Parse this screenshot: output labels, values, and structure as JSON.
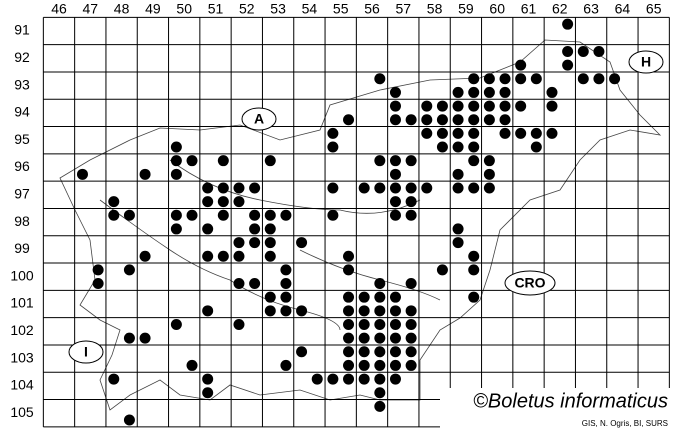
{
  "map": {
    "columns": [
      46,
      47,
      48,
      49,
      50,
      51,
      52,
      53,
      54,
      55,
      56,
      57,
      58,
      59,
      60,
      61,
      62,
      63,
      64,
      65
    ],
    "rows": [
      91,
      92,
      93,
      94,
      95,
      96,
      97,
      98,
      99,
      100,
      101,
      102,
      103,
      104,
      105
    ],
    "country_labels": [
      "A",
      "H",
      "CRO",
      "I"
    ],
    "occurrences": [
      {
        "y": 90.75,
        "x": [
          62.25
        ]
      },
      {
        "y": 91.75,
        "x": [
          62.25,
          62.75,
          63.25
        ]
      },
      {
        "y": 92.25,
        "x": [
          60.75,
          62.25
        ]
      },
      {
        "y": 92.75,
        "x": [
          56.25,
          59.25,
          59.75,
          60.25,
          60.75,
          61.25,
          62.75,
          63.25,
          63.75
        ]
      },
      {
        "y": 93.25,
        "x": [
          56.75,
          58.75,
          59.25,
          59.75,
          60.25,
          61.75
        ]
      },
      {
        "y": 93.75,
        "x": [
          56.75,
          57.75,
          58.25,
          58.75,
          59.25,
          59.75,
          60.25,
          60.75,
          61.75
        ]
      },
      {
        "y": 94.25,
        "x": [
          55.25,
          56.75,
          57.25,
          57.75,
          58.25,
          58.75,
          59.25,
          59.75,
          60.25
        ]
      },
      {
        "y": 94.75,
        "x": [
          54.75,
          57.75,
          58.25,
          58.75,
          59.25,
          60.25,
          60.75,
          61.25,
          61.75
        ]
      },
      {
        "y": 95.25,
        "x": [
          49.75,
          54.75,
          58.25,
          58.75,
          59.25,
          61.25
        ]
      },
      {
        "y": 95.75,
        "x": [
          49.75,
          50.25,
          51.25,
          52.75,
          56.25,
          56.75,
          57.25,
          59.25,
          59.75
        ]
      },
      {
        "y": 96.25,
        "x": [
          46.75,
          48.75,
          49.75,
          56.75,
          58.75,
          59.75
        ]
      },
      {
        "y": 96.75,
        "x": [
          50.75,
          51.25,
          51.75,
          52.25,
          54.75,
          55.75,
          56.25,
          56.75,
          57.25,
          57.75,
          58.75,
          59.25,
          59.75
        ]
      },
      {
        "y": 97.25,
        "x": [
          47.75,
          50.75,
          51.25,
          51.75,
          56.75,
          57.25
        ]
      },
      {
        "y": 97.75,
        "x": [
          47.75,
          48.25,
          49.75,
          50.25,
          51.25,
          52.25,
          52.75,
          53.25,
          54.75,
          56.75,
          57.25
        ]
      },
      {
        "y": 98.25,
        "x": [
          49.75,
          50.75,
          52.25,
          52.75,
          58.75
        ]
      },
      {
        "y": 98.75,
        "x": [
          51.75,
          52.25,
          52.75,
          53.75,
          58.75
        ]
      },
      {
        "y": 99.25,
        "x": [
          48.75,
          50.75,
          51.25,
          51.75,
          52.75,
          55.25,
          59.25
        ]
      },
      {
        "y": 99.75,
        "x": [
          47.25,
          48.25,
          53.25,
          55.25,
          58.25,
          59.25
        ]
      },
      {
        "y": 100.25,
        "x": [
          47.25,
          51.75,
          52.25,
          53.25,
          56.25,
          57.25
        ]
      },
      {
        "y": 100.75,
        "x": [
          52.75,
          53.25,
          55.25,
          55.75,
          56.25,
          56.75,
          59.25
        ]
      },
      {
        "y": 101.25,
        "x": [
          50.75,
          52.75,
          53.25,
          53.75,
          55.25,
          55.75,
          56.25,
          56.75,
          57.25
        ]
      },
      {
        "y": 101.75,
        "x": [
          49.75,
          51.75,
          55.25,
          55.75,
          56.25,
          56.75,
          57.25
        ]
      },
      {
        "y": 102.25,
        "x": [
          48.25,
          48.75,
          55.25,
          55.75,
          56.25,
          56.75,
          57.25
        ]
      },
      {
        "y": 102.75,
        "x": [
          53.75,
          55.25,
          55.75,
          56.25,
          56.75,
          57.25
        ]
      },
      {
        "y": 103.25,
        "x": [
          50.25,
          53.25,
          55.25,
          55.75,
          56.25,
          56.75,
          57.25
        ]
      },
      {
        "y": 103.75,
        "x": [
          47.75,
          50.75,
          54.25,
          54.75,
          55.25,
          55.75,
          56.25,
          56.75
        ]
      },
      {
        "y": 104.25,
        "x": [
          50.75,
          56.25
        ]
      },
      {
        "y": 104.75,
        "x": [
          56.25
        ]
      },
      {
        "y": 105.25,
        "x": [
          48.25
        ]
      }
    ],
    "copyright": "©Boletus informaticus",
    "credits": "GIS, N. Ogris, BI, SURS"
  }
}
